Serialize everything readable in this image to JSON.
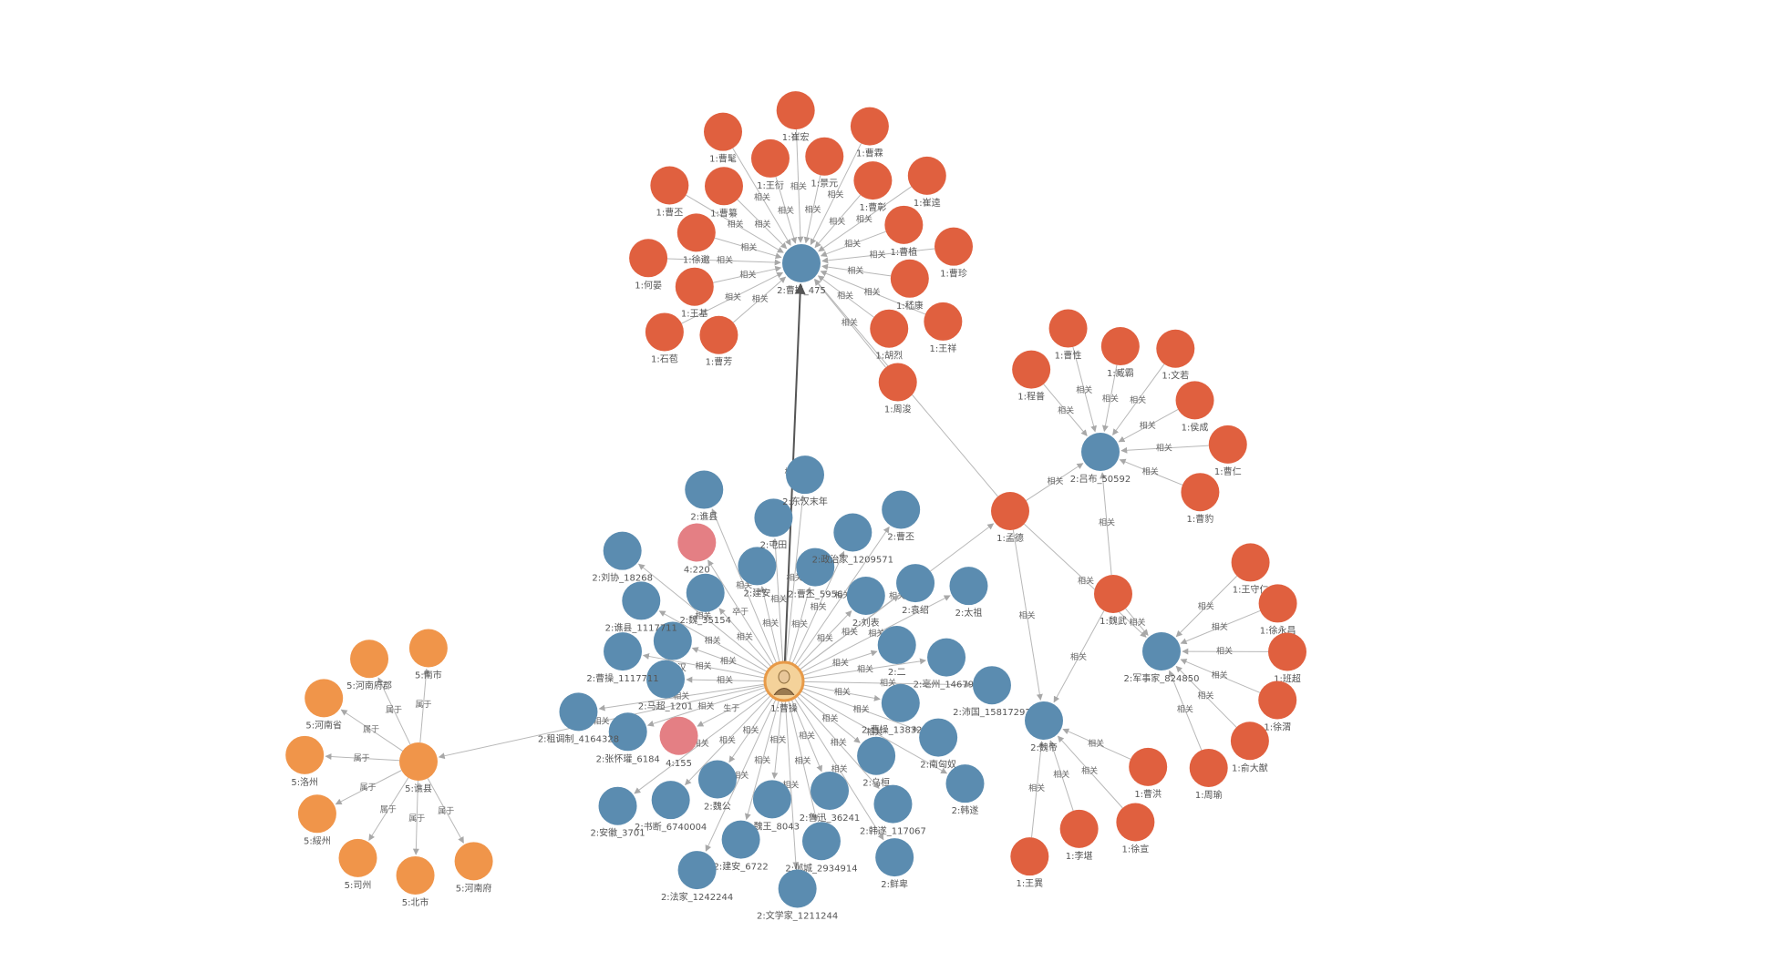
{
  "graph": {
    "colors": {
      "1": "#e0603f",
      "2": "#5b8cb0",
      "4": "#e47f84",
      "5": "#f0954a"
    },
    "clusters": [
      {
        "hub": {
          "label": "1:曹操"
        },
        "leaves": [
          {
            "label": "2:东汉",
            "edge": "相关"
          },
          {
            "label": "2:谯县_1117711",
            "edge": "相关"
          },
          {
            "label": "2:刘协_18268",
            "edge": "相关"
          },
          {
            "label": "2:魏_35154",
            "edge": "相关"
          },
          {
            "label": "4:220",
            "edge": "卒于"
          },
          {
            "label": "2:谯县",
            "edge": "相关"
          },
          {
            "label": "2:建安",
            "edge": "相关"
          },
          {
            "label": "2:屯田",
            "edge": "相关"
          },
          {
            "label": "2:东汉末年",
            "edge": "相关"
          },
          {
            "label": "2:曹丕_5956",
            "edge": "相关"
          },
          {
            "label": "2:政治家_1209571",
            "edge": "相关"
          },
          {
            "label": "2:曹丕",
            "edge": "相关"
          },
          {
            "label": "2:刘表",
            "edge": "相关"
          },
          {
            "label": "2:袁绍",
            "edge": "相关"
          },
          {
            "label": "2:太祖",
            "edge": "相关"
          },
          {
            "label": "2:二",
            "edge": "相关"
          },
          {
            "label": "2:亳州_146796",
            "edge": "相关"
          },
          {
            "label": "2:沛国_15817292",
            "edge": "相关"
          },
          {
            "label": "2:曹操_13832016",
            "edge": "相关"
          },
          {
            "label": "2:南匈奴",
            "edge": "相关"
          },
          {
            "label": "2:韩遂",
            "edge": "相关"
          },
          {
            "label": "2:乌桓",
            "edge": "相关"
          },
          {
            "label": "2:韩遂_117067",
            "edge": "相关"
          },
          {
            "label": "2:鲜卑",
            "edge": "相关"
          },
          {
            "label": "2:鲁迅_36241",
            "edge": "相关"
          },
          {
            "label": "2:邺城_2934914",
            "edge": "相关"
          },
          {
            "label": "2:文学家_1211244",
            "edge": "相关"
          },
          {
            "label": "2:魏王_8043",
            "edge": "相关"
          },
          {
            "label": "2:建安_6722",
            "edge": "相关"
          },
          {
            "label": "2:法家_1242244",
            "edge": "相关"
          },
          {
            "label": "2:魏公",
            "edge": "相关"
          },
          {
            "label": "2:书断_6740004",
            "edge": "相关"
          },
          {
            "label": "2:安徽_3701",
            "edge": "相关"
          },
          {
            "label": "4:155",
            "edge": "生于"
          },
          {
            "label": "2:张怀瓘_6184",
            "edge": "相关"
          },
          {
            "label": "2:租调制_4164328",
            "edge": "相关"
          },
          {
            "label": "2:马超_1201",
            "edge": "相关"
          },
          {
            "label": "2:曹操_1117711",
            "edge": "相关"
          }
        ]
      },
      {
        "hub": {
          "label": "2:曹操_475"
        },
        "leaves": [
          {
            "label": "1:曹芳",
            "edge": "相关"
          },
          {
            "label": "1:石苞",
            "edge": "相关"
          },
          {
            "label": "1:王基",
            "edge": "相关"
          },
          {
            "label": "1:何晏",
            "edge": "相关"
          },
          {
            "label": "1:徐邈",
            "edge": "相关"
          },
          {
            "label": "1:曹丕",
            "edge": "相关"
          },
          {
            "label": "1:曹纂",
            "edge": "相关"
          },
          {
            "label": "1:曹髦",
            "edge": "相关"
          },
          {
            "label": "1:王衍",
            "edge": "相关"
          },
          {
            "label": "1:崔宏",
            "edge": "相关"
          },
          {
            "label": "1:景元",
            "edge": "相关"
          },
          {
            "label": "1:曹霖",
            "edge": "相关"
          },
          {
            "label": "1:曹彰",
            "edge": "相关"
          },
          {
            "label": "1:崔逵",
            "edge": "相关"
          },
          {
            "label": "1:曹植",
            "edge": "相关"
          },
          {
            "label": "1:曹珍",
            "edge": "相关"
          },
          {
            "label": "1:嵇康",
            "edge": "相关"
          },
          {
            "label": "1:王祥",
            "edge": "相关"
          },
          {
            "label": "1:胡烈",
            "edge": "相关"
          },
          {
            "label": "1:周浚",
            "edge": "相关"
          }
        ]
      },
      {
        "hub": {
          "label": "5:谯县"
        },
        "leaves": [
          {
            "label": "5:南市",
            "edge": "属于"
          },
          {
            "label": "5:河南府郡",
            "edge": "属于"
          },
          {
            "label": "5:河南省",
            "edge": "属于"
          },
          {
            "label": "5:洛州",
            "edge": "属于"
          },
          {
            "label": "5:綏州",
            "edge": "属于"
          },
          {
            "label": "5:司州",
            "edge": "属于"
          },
          {
            "label": "5:北市",
            "edge": "属于"
          },
          {
            "label": "5:河南府",
            "edge": "属于"
          }
        ]
      },
      {
        "hub": {
          "label": "2:吕布_50592"
        },
        "leaves": [
          {
            "label": "1:程普",
            "edge": "相关"
          },
          {
            "label": "1:曹性",
            "edge": "相关"
          },
          {
            "label": "1:臧霸",
            "edge": "相关"
          },
          {
            "label": "1:文若",
            "edge": "相关"
          },
          {
            "label": "1:侯成",
            "edge": "相关"
          },
          {
            "label": "1:曹仁",
            "edge": "相关"
          },
          {
            "label": "1:曹豹",
            "edge": "相关"
          }
        ]
      },
      {
        "hub": {
          "label": "2:军事家_824850"
        },
        "leaves": [
          {
            "label": "1:王守仁",
            "edge": "相关"
          },
          {
            "label": "1:徐永昌",
            "edge": "相关"
          },
          {
            "label": "1:班超",
            "edge": "相关"
          },
          {
            "label": "1:徐渭",
            "edge": "相关"
          },
          {
            "label": "1:俞大猷",
            "edge": "相关"
          },
          {
            "label": "1:周瑜",
            "edge": "相关"
          }
        ]
      },
      {
        "hub": {
          "label": "2:魏帝"
        },
        "leaves": [
          {
            "label": "1:王異",
            "edge": "相关"
          },
          {
            "label": "1:李堪",
            "edge": "相关"
          },
          {
            "label": "1:徐宣",
            "edge": "相关"
          },
          {
            "label": "1:曹洪",
            "edge": "相关"
          }
        ]
      }
    ],
    "shared_nodes": [
      {
        "label": "1:孟德"
      },
      {
        "label": "1:魏武"
      }
    ],
    "bridges": [
      {
        "label": "相关"
      },
      {
        "label": "相关"
      },
      {
        "label": "相关"
      },
      {
        "label": "相关"
      },
      {
        "label": "相关"
      },
      {
        "label": "相关"
      },
      {
        "label": "相关"
      },
      {
        "label": "相关"
      },
      {
        "label": "相关"
      },
      {
        "label": "相关"
      }
    ]
  }
}
